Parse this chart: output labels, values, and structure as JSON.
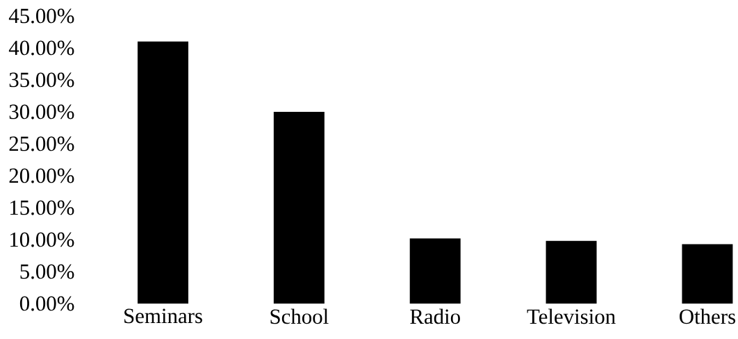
{
  "chart_data": {
    "type": "bar",
    "categories": [
      "Seminars",
      "School",
      "Radio",
      "Television",
      "Others"
    ],
    "values": [
      41,
      30,
      10.2,
      9.8,
      9.3
    ],
    "color": "#000000",
    "ylim": [
      0,
      45
    ],
    "yticks": [
      {
        "value": 0,
        "label": "0.00%"
      },
      {
        "value": 5,
        "label": "5.00%"
      },
      {
        "value": 10,
        "label": "10.00%"
      },
      {
        "value": 15,
        "label": "15.00%"
      },
      {
        "value": 20,
        "label": "20.00%"
      },
      {
        "value": 25,
        "label": "25.00%"
      },
      {
        "value": 30,
        "label": "30.00%"
      },
      {
        "value": 35,
        "label": "35.00%"
      },
      {
        "value": 40,
        "label": "40.00%"
      },
      {
        "value": 45,
        "label": "45.00%"
      }
    ],
    "grid": false
  }
}
